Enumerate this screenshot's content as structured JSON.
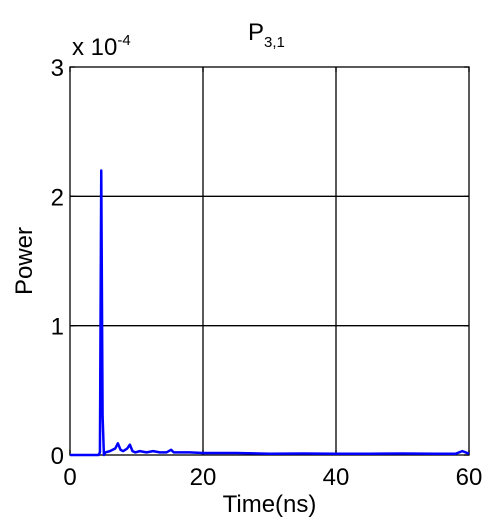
{
  "chart_data": {
    "type": "line",
    "title": "P",
    "title_subscript": "3,1",
    "xlabel": "Time(ns)",
    "ylabel": "Power",
    "y_exponent_base": "x 10",
    "y_exponent_power": "-4",
    "xlim": [
      0,
      60
    ],
    "ylim": [
      0,
      3
    ],
    "x_ticks": [
      "0",
      "20",
      "40",
      "60"
    ],
    "y_ticks": [
      "0",
      "1",
      "2",
      "3"
    ],
    "grid": true,
    "series_color": "#0000ff",
    "series": [
      {
        "x": [
          0,
          4.3,
          4.5,
          4.7,
          4.9,
          5.1,
          5.3,
          6,
          6.8,
          7.2,
          7.6,
          8,
          8.6,
          9.0,
          9.4,
          9.8,
          10.5,
          11.5,
          12.5,
          13.5,
          14.5,
          15.2,
          15.6,
          16.5,
          18,
          20,
          25,
          30,
          35,
          40,
          45,
          50,
          55,
          58,
          59,
          60
        ],
        "y": [
          0,
          0,
          0.02,
          2.2,
          0.3,
          0.0,
          0.02,
          0.03,
          0.05,
          0.09,
          0.04,
          0.03,
          0.05,
          0.08,
          0.03,
          0.02,
          0.03,
          0.02,
          0.03,
          0.02,
          0.02,
          0.04,
          0.02,
          0.02,
          0.02,
          0.015,
          0.015,
          0.01,
          0.012,
          0.01,
          0.01,
          0.012,
          0.01,
          0.01,
          0.03,
          0.01
        ]
      }
    ]
  }
}
